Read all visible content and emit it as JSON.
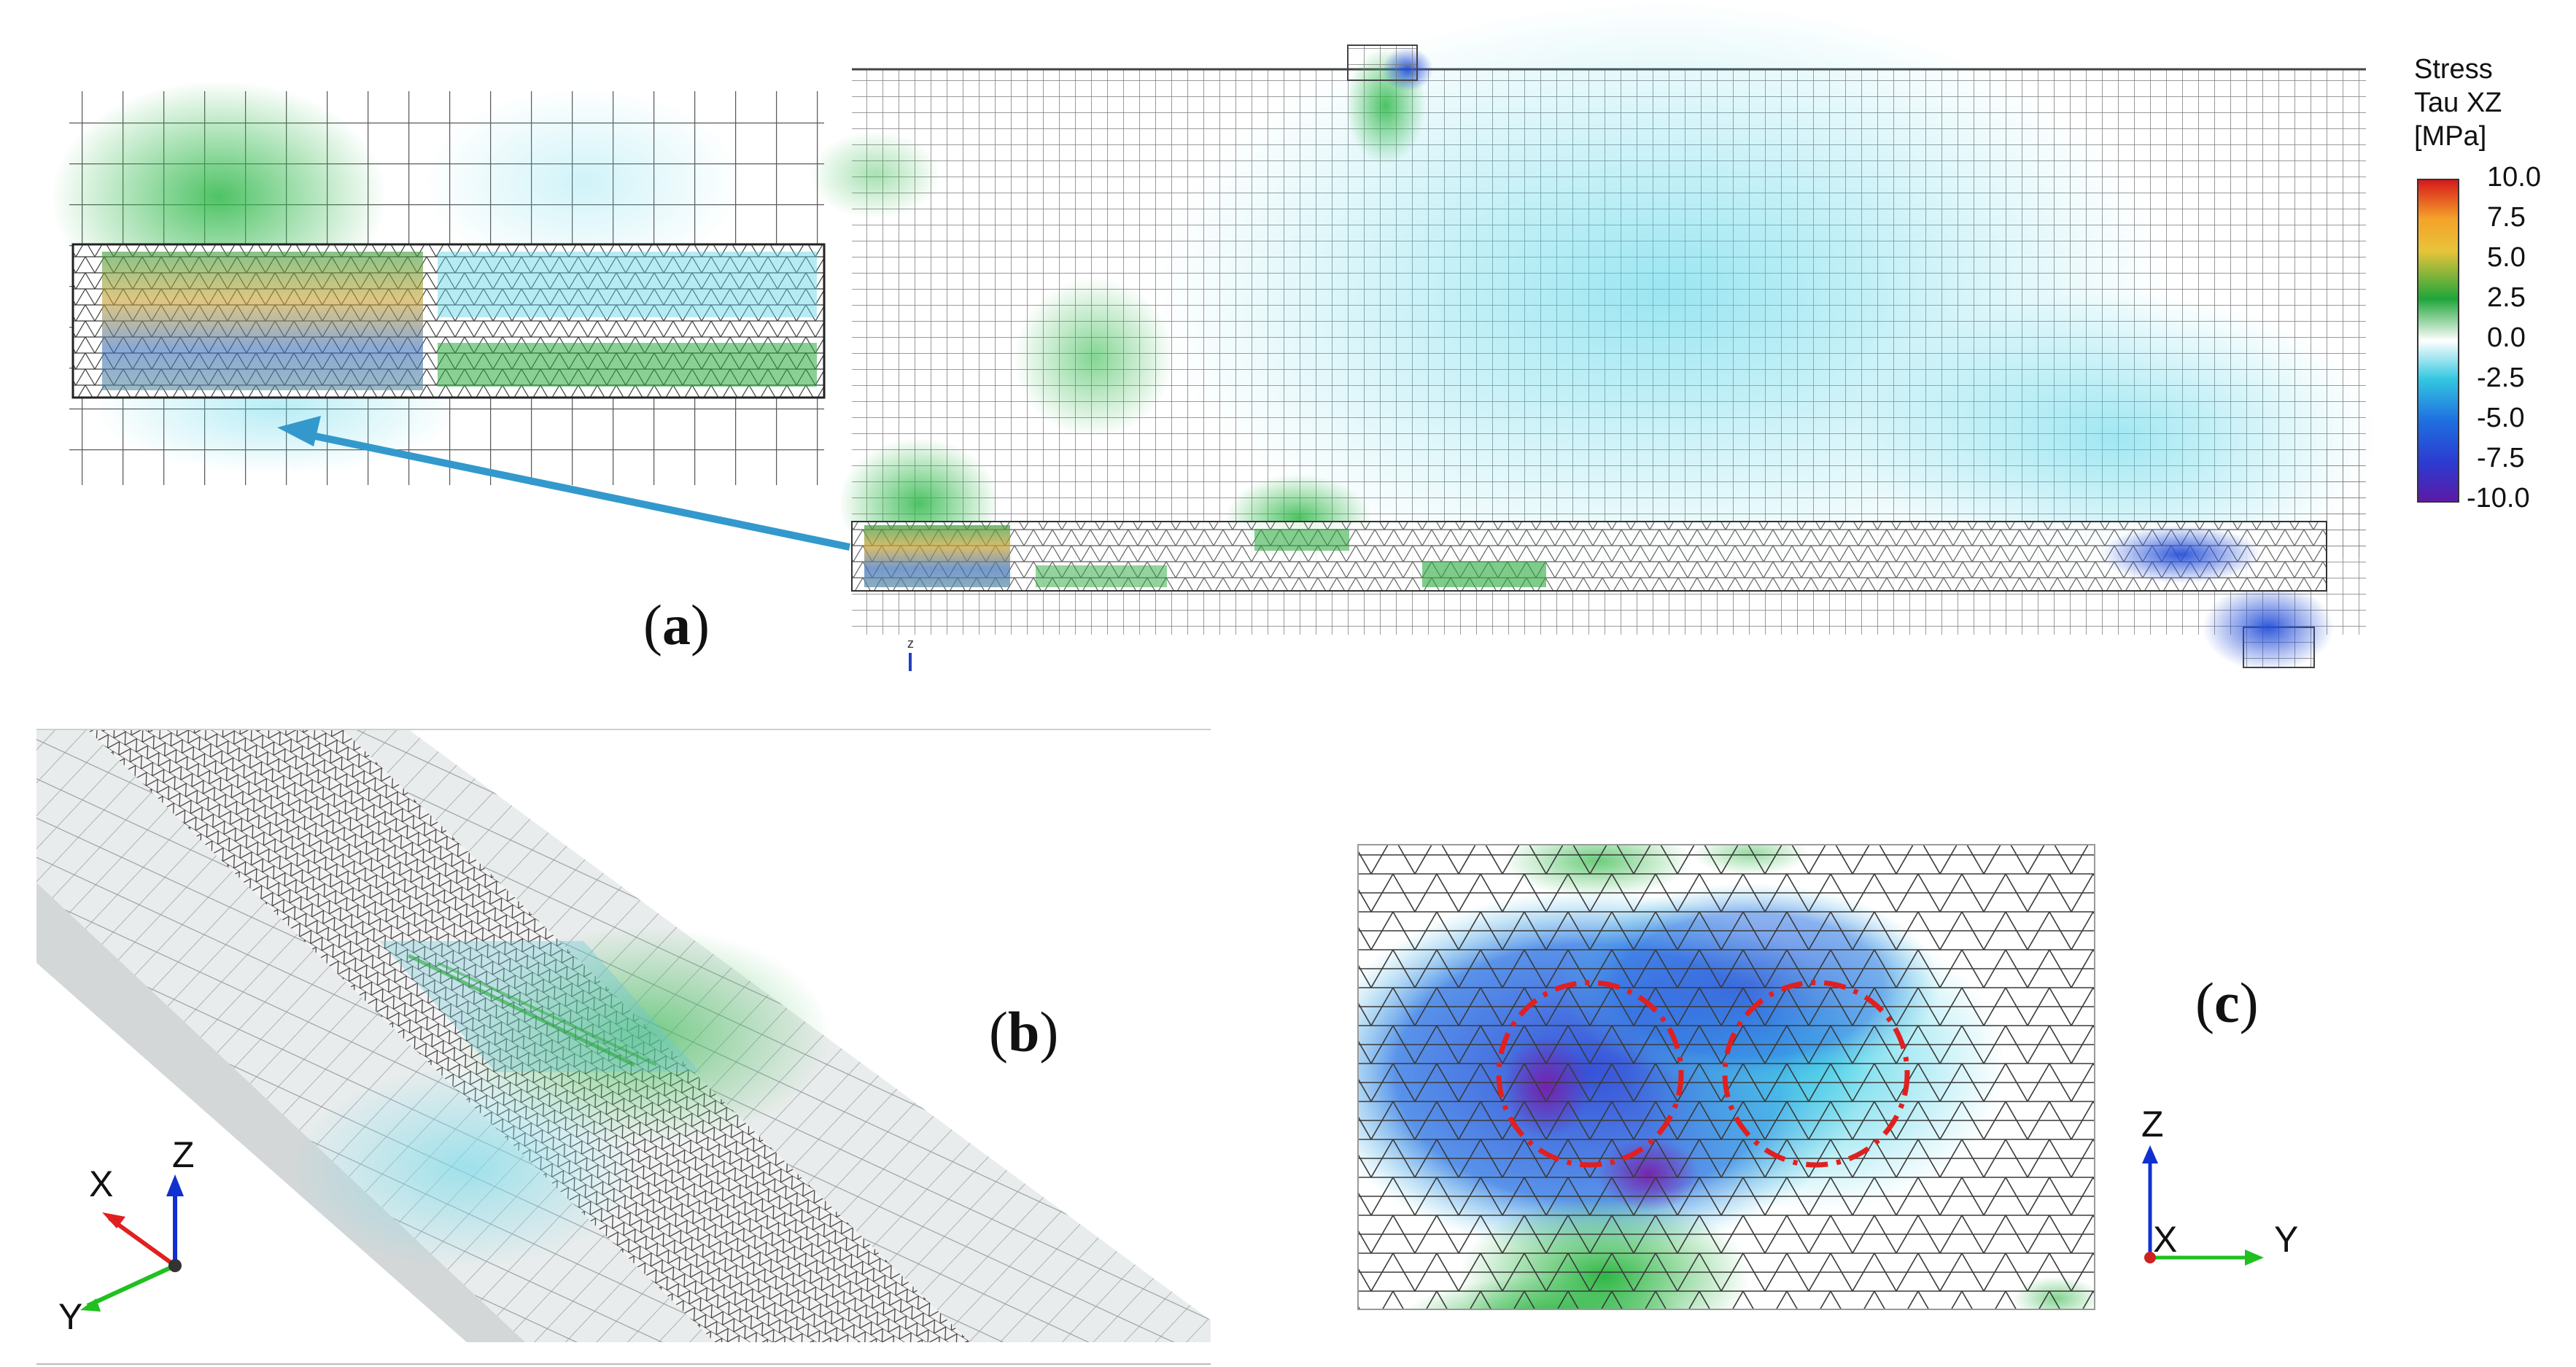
{
  "figure": {
    "panels": [
      {
        "id": "a",
        "label": "a"
      },
      {
        "id": "b",
        "label": "b"
      },
      {
        "id": "c",
        "label": "c"
      }
    ],
    "colorbar": {
      "title_lines": [
        "Stress",
        "Tau XZ",
        "[MPa]"
      ],
      "ticks": [
        "10.0",
        "7.5",
        "5.0",
        "2.5",
        "0.0",
        "-2.5",
        "-5.0",
        "-7.5",
        "-10.0"
      ],
      "range": [
        -10,
        10
      ],
      "colors": [
        "#d7191c",
        "#f4a22a",
        "#e8c33a",
        "#1fa53a",
        "#ffffff",
        "#33c7e0",
        "#1f6fe0",
        "#2c3bd1",
        "#5b1aa6"
      ]
    },
    "axes_b": {
      "x": "X",
      "y": "Y",
      "z": "Z"
    },
    "axes_c": {
      "x": "X",
      "y": "Y",
      "z": "Z"
    },
    "axes_a_small": {
      "z": "z"
    },
    "accent": {
      "arrow": "#3399cc",
      "circle": "#e02020"
    }
  }
}
